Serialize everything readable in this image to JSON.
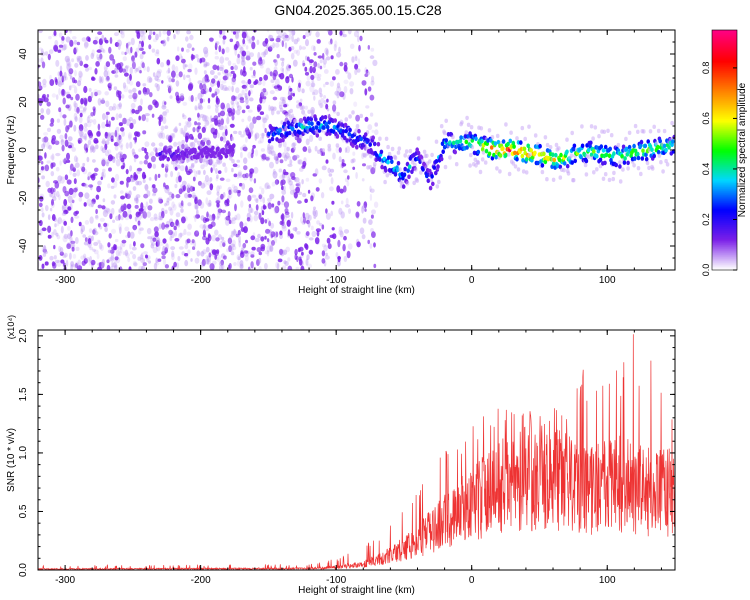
{
  "title": "GN04.2025.365.00.15.C28",
  "chart_data": [
    {
      "type": "heatmap",
      "xlabel": "Height of straight line (km)",
      "ylabel": "Frequency (Hz)",
      "xlim": [
        -320,
        150
      ],
      "ylim": [
        -50,
        50
      ],
      "xticks": [
        -300,
        -200,
        -100,
        0,
        100
      ],
      "yticks": [
        -40,
        -20,
        0,
        20,
        40
      ],
      "colorbar": {
        "label": "Normalized spectral amplitude",
        "range": [
          0.0,
          0.95
        ],
        "ticks": [
          "0.0",
          "0.2",
          "0.4",
          "0.6",
          "0.8"
        ],
        "colormap": [
          "#ffffff",
          "#7a1fe8",
          "#0000ff",
          "#00d8ff",
          "#00ff00",
          "#ffff00",
          "#ff8000",
          "#ff0000",
          "#ff0080"
        ]
      },
      "signal_track": {
        "height_km": [
          -220,
          -200,
          -180,
          -140,
          -120,
          -105,
          -95,
          -85,
          -75,
          -65,
          -55,
          -50,
          -45,
          -40,
          -35,
          -30,
          -25,
          -20,
          -10,
          0,
          10,
          20,
          30,
          40,
          50,
          60,
          70,
          80,
          90,
          100,
          110,
          120,
          130,
          140,
          150
        ],
        "frequency_hz": [
          -2,
          -1,
          -1,
          8,
          10,
          10,
          8,
          5,
          3,
          -4,
          -8,
          -12,
          -6,
          -3,
          -9,
          -13,
          -4,
          3,
          3,
          3,
          1,
          0,
          0,
          -1,
          -2,
          -4,
          -3,
          -1,
          -1,
          -2,
          -3,
          -1,
          0,
          1,
          2
        ],
        "amplitude": [
          0.2,
          0.1,
          0.1,
          0.35,
          0.4,
          0.35,
          0.3,
          0.3,
          0.3,
          0.4,
          0.4,
          0.35,
          0.4,
          0.3,
          0.25,
          0.3,
          0.35,
          0.4,
          0.45,
          0.55,
          0.7,
          0.85,
          0.9,
          0.8,
          0.75,
          0.7,
          0.6,
          0.55,
          0.55,
          0.5,
          0.55,
          0.6,
          0.55,
          0.5,
          0.45
        ]
      },
      "noise_region_km": [
        -320,
        -90
      ]
    },
    {
      "type": "line",
      "xlabel": "Height of straight line (km)",
      "ylabel": "SNR (10 * v/v)",
      "yscale_note": "(x10⁴)",
      "xlim": [
        -320,
        150
      ],
      "ylim": [
        0,
        2.05
      ],
      "xticks": [
        -300,
        -200,
        -100,
        0,
        100
      ],
      "yticks": [
        "0.0",
        "0.5",
        "1.0",
        "1.5",
        "2.0"
      ],
      "color": "#ee3333",
      "envelope": {
        "height_km": [
          -320,
          -120,
          -100,
          -80,
          -60,
          -40,
          -30,
          -20,
          -10,
          0,
          10,
          20,
          30,
          40,
          50,
          60,
          70,
          80,
          90,
          100,
          110,
          120,
          130,
          140,
          150
        ],
        "mean_snr": [
          0.01,
          0.015,
          0.03,
          0.06,
          0.15,
          0.3,
          0.4,
          0.5,
          0.6,
          0.7,
          0.78,
          0.85,
          0.9,
          0.95,
          0.95,
          0.95,
          0.9,
          0.82,
          0.85,
          0.88,
          0.9,
          0.85,
          0.82,
          0.8,
          0.8
        ],
        "peak_snr": [
          0.04,
          0.05,
          0.1,
          0.2,
          0.4,
          0.75,
          1.35,
          1.15,
          1.2,
          1.25,
          1.4,
          1.4,
          1.35,
          1.35,
          1.4,
          1.4,
          1.3,
          1.7,
          1.85,
          1.8,
          1.85,
          2.05,
          1.85,
          1.75,
          1.4
        ]
      }
    }
  ]
}
